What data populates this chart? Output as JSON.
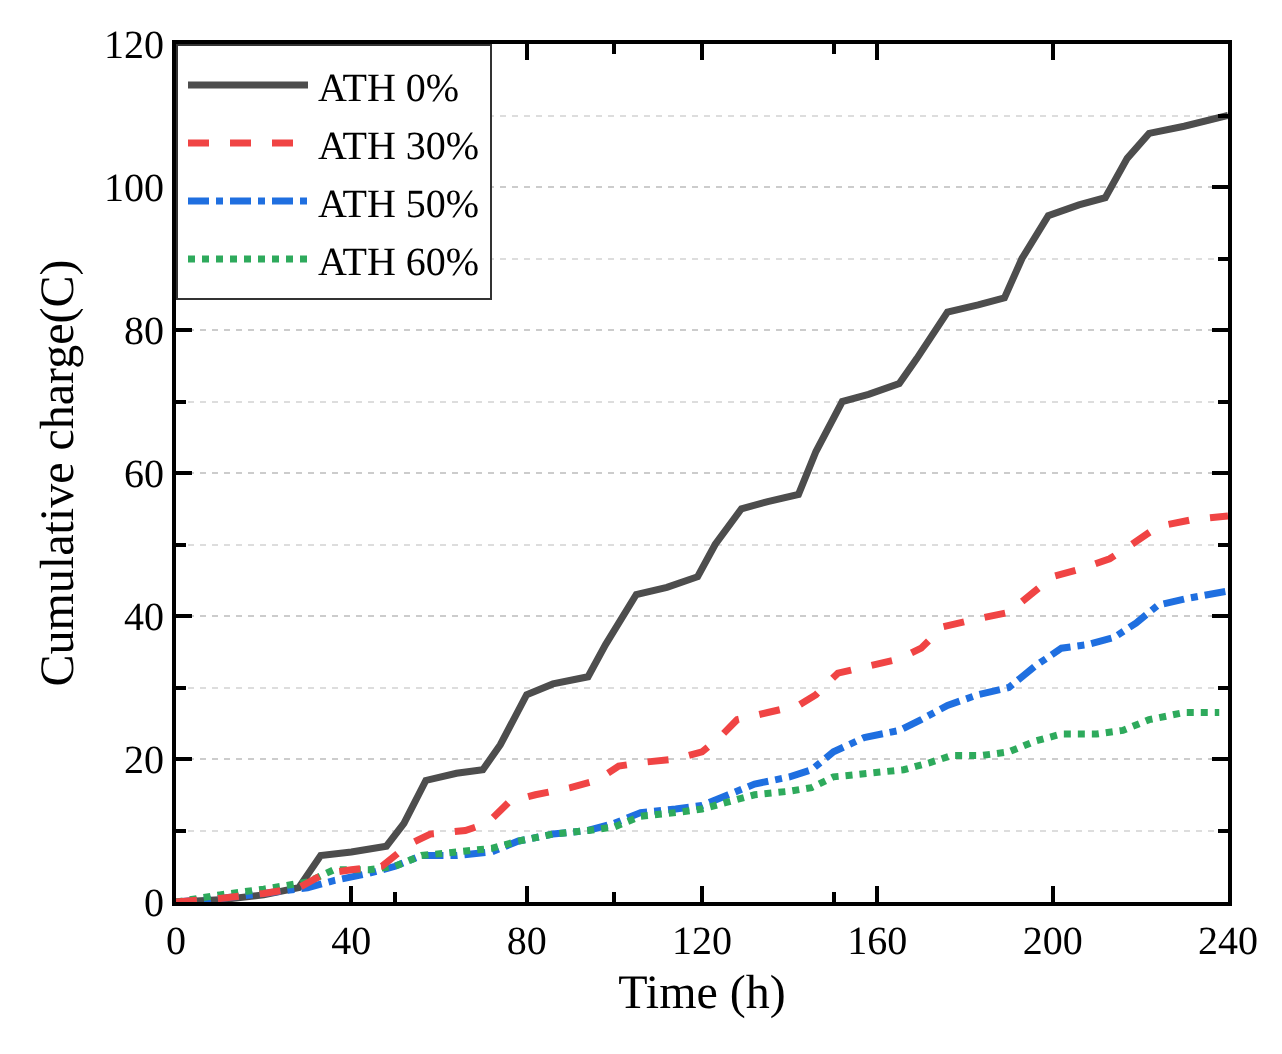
{
  "chart_data": {
    "type": "line",
    "xlabel": "Time (h)",
    "ylabel": "Cumulative charge(C)",
    "xlim": [
      0,
      240
    ],
    "xticks": [
      0,
      40,
      80,
      120,
      160,
      200,
      240
    ],
    "ylim": [
      0,
      120
    ],
    "yticks": [
      0,
      20,
      40,
      60,
      80,
      100,
      120
    ],
    "grid": "y",
    "legend": "top left",
    "marker": "none",
    "series": [
      {
        "name": "ATH 0%",
        "color": "#4d4d4d",
        "line_style": "solid",
        "x": [
          0,
          10,
          20,
          28,
          33,
          40,
          48,
          52,
          57,
          64,
          70,
          74,
          80,
          86,
          94,
          98,
          105,
          112,
          119,
          123,
          129,
          135,
          142,
          146,
          152,
          158,
          165,
          169,
          176,
          183,
          189,
          193,
          199,
          206,
          212,
          217,
          222,
          230,
          240
        ],
        "values": [
          0,
          0.3,
          1,
          2,
          6.5,
          7,
          7.8,
          11,
          17,
          18,
          18.5,
          22,
          29,
          30.5,
          31.5,
          36,
          43,
          44,
          45.5,
          50,
          55,
          56,
          57,
          63,
          70,
          71,
          72.5,
          76,
          82.5,
          83.5,
          84.5,
          90,
          96,
          97.5,
          98.5,
          104,
          107.5,
          108.5,
          110
        ]
      },
      {
        "name": "ATH 30%",
        "color": "#f04444",
        "line_style": "dashed",
        "x": [
          0,
          10,
          20,
          28,
          34,
          40,
          47,
          53,
          58,
          66,
          71,
          76,
          82,
          90,
          96,
          101,
          106,
          114,
          120,
          124,
          128,
          135,
          142,
          146,
          151,
          158,
          165,
          170,
          175,
          182,
          190,
          195,
          200,
          206,
          213,
          218,
          224,
          232,
          240
        ],
        "values": [
          0,
          0.5,
          1.2,
          2,
          4,
          4.5,
          5,
          8,
          9.5,
          10,
          11,
          14,
          15,
          16,
          17,
          19,
          19.5,
          20,
          21,
          23,
          25.5,
          26.5,
          27.5,
          29,
          32,
          33,
          34,
          35.5,
          38.5,
          39.5,
          40.5,
          43,
          45.5,
          46.5,
          48,
          50,
          52.5,
          53.5,
          54
        ]
      },
      {
        "name": "ATH 50%",
        "color": "#1f6fe0",
        "line_style": "dashdot",
        "x": [
          0,
          10,
          20,
          30,
          36,
          44,
          50,
          56,
          64,
          72,
          78,
          86,
          94,
          100,
          106,
          114,
          120,
          126,
          132,
          140,
          145,
          150,
          157,
          165,
          170,
          176,
          183,
          190,
          196,
          202,
          208,
          214,
          219,
          224,
          231,
          240
        ],
        "values": [
          0,
          0.5,
          1.2,
          2,
          3,
          4,
          5,
          6.5,
          6.5,
          7,
          8.5,
          9.5,
          10,
          11,
          12.5,
          13,
          13.5,
          15,
          16.5,
          17.5,
          18.5,
          21,
          23,
          24,
          25.5,
          27.5,
          29,
          30,
          33,
          35.5,
          36,
          37,
          39,
          41.5,
          42.5,
          43.5
        ]
      },
      {
        "name": "ATH 60%",
        "color": "#2eaa5c",
        "line_style": "dotted",
        "x": [
          0,
          10,
          20,
          30,
          36,
          44,
          50,
          56,
          64,
          72,
          78,
          86,
          94,
          100,
          106,
          114,
          120,
          126,
          132,
          140,
          145,
          150,
          158,
          166,
          172,
          177,
          184,
          190,
          196,
          202,
          210,
          216,
          222,
          230,
          238
        ],
        "values": [
          0,
          1,
          1.8,
          2.8,
          4.5,
          4.5,
          5,
          6.5,
          7,
          7.5,
          8.5,
          9.5,
          10,
          10.5,
          12,
          12.5,
          13,
          14,
          15,
          15.5,
          16,
          17.5,
          18,
          18.5,
          19.5,
          20.5,
          20.5,
          21,
          22.5,
          23.5,
          23.5,
          24,
          25.5,
          26.5,
          26.5
        ]
      }
    ]
  }
}
